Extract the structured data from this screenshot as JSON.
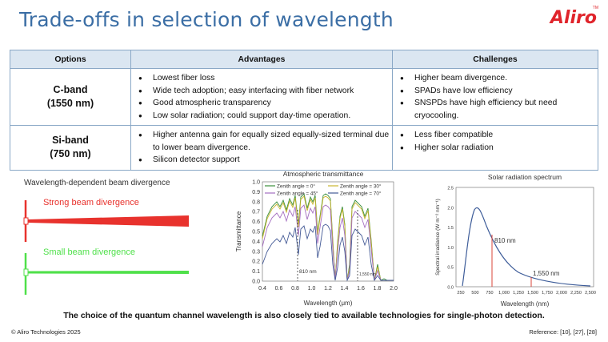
{
  "header": {
    "title": "Trade-offs in selection of wavelength"
  },
  "logo": {
    "text": "Aliro",
    "tm": "TM"
  },
  "table": {
    "headers": [
      "Options",
      "Advantages",
      "Challenges"
    ],
    "rows": [
      {
        "option_line1": "C-band",
        "option_line2": "(1550 nm)",
        "advantages": [
          "Lowest fiber loss",
          "Wide tech adoption; easy interfacing with fiber network",
          "Good atmospheric transparency",
          "Low solar radiation; could support day-time operation."
        ],
        "challenges": [
          "Higher beam divergence.",
          "SPADs have low efficiency",
          "SNSPDs have high efficiency but need cryocooling."
        ]
      },
      {
        "option_line1": "Si-band",
        "option_line2": "(750 nm)",
        "advantages": [
          "Higher antenna gain for equally sized equally-sized terminal due to lower beam divergence.",
          "Silicon detector support"
        ],
        "challenges": [
          "Less fiber compatible",
          "Higher solar radiation"
        ]
      }
    ]
  },
  "beam_panel": {
    "title": "Wavelength-dependent beam divergence",
    "strong_label": "Strong beam divergence",
    "small_label": "Small beam divergence",
    "strong_color": "#e8322d",
    "small_color": "#4fe04a"
  },
  "atmos_panel": {
    "title": "Atmospheric transmittance",
    "legend": [
      "Zenith angle = 0°",
      "Zenith angle = 30°",
      "Zenith angle = 45°",
      "Zenith angle = 70°"
    ],
    "legend_colors": [
      "#3a8f3a",
      "#c9b52e",
      "#a46ec0",
      "#445a96"
    ],
    "y_ticks": [
      "1.0",
      "0.9",
      "0.8",
      "0.7",
      "0.6",
      "0.5",
      "0.4",
      "0.3",
      "0.2",
      "0.1",
      "0.0"
    ],
    "x_ticks": [
      "0.4",
      "0.6",
      "0.8",
      "1.0",
      "1.2",
      "1.4",
      "1.6",
      "1.8",
      "2.0"
    ],
    "ylabel": "Transmittance",
    "xlabel": "Wavelength (μm)",
    "marker1": "810 nm",
    "marker2": "1,550 nm"
  },
  "solar_panel": {
    "title": "Solar radiation spectrum",
    "y_ticks": [
      "2.5",
      "2.0",
      "1.5",
      "1.0",
      "0.5",
      "0.0"
    ],
    "x_ticks": [
      "250",
      "500",
      "750",
      "1,000",
      "1,250",
      "1,500",
      "1,750",
      "2,000",
      "2,250",
      "2,500"
    ],
    "ylabel": "Spectral irradiance (W m⁻² nm⁻¹)",
    "xlabel": "Wavelength (nm)",
    "marker1": "810 nm",
    "marker2": "1,550 nm",
    "curve_color": "#3d5c99",
    "marker_color": "#d9443a"
  },
  "footer": {
    "note": "The choice of the quantum channel wavelength is also closely tied to available technologies for single-photon detection.",
    "copyright": "© Aliro Technologies 2025",
    "reference": "Reference: [10], [27], [28]"
  }
}
